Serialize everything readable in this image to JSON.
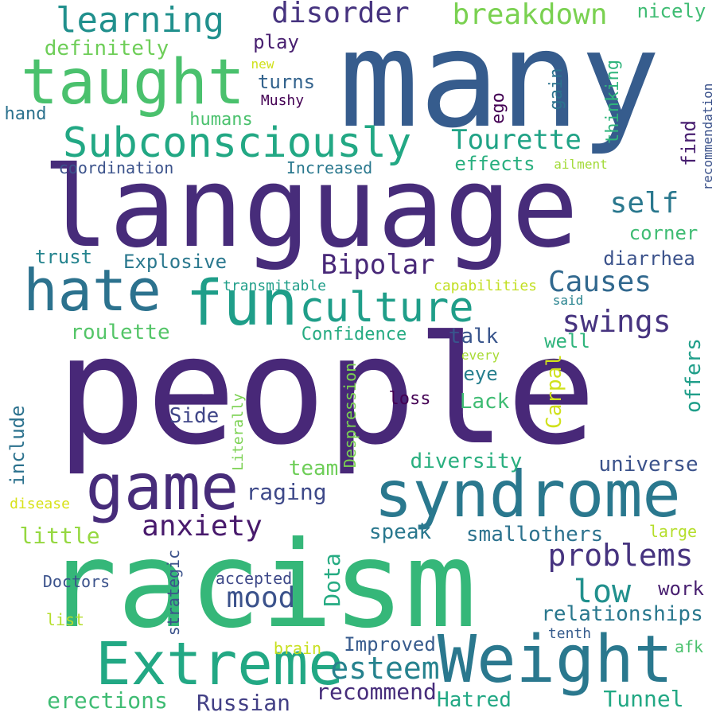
{
  "words": [
    {
      "text": "people",
      "color": "#482878"
    },
    {
      "text": "many",
      "color": "#365c8d"
    },
    {
      "text": "language",
      "color": "#472c7a"
    },
    {
      "text": "racism",
      "color": "#35b779"
    },
    {
      "text": "syndrome",
      "color": "#2a788e"
    },
    {
      "text": "Weight",
      "color": "#2a788e"
    },
    {
      "text": "Extreme",
      "color": "#22a884"
    },
    {
      "text": "game",
      "color": "#472c7a"
    },
    {
      "text": "taught",
      "color": "#4ac16d"
    },
    {
      "text": "fun",
      "color": "#1f9e89"
    },
    {
      "text": "hate",
      "color": "#2c728e"
    },
    {
      "text": "culture",
      "color": "#1f9e89"
    },
    {
      "text": "Subconsciously",
      "color": "#22a884"
    },
    {
      "text": "learning",
      "color": "#21908d"
    },
    {
      "text": "disorder",
      "color": "#46337f"
    },
    {
      "text": "breakdown",
      "color": "#7ad151"
    },
    {
      "text": "nicely",
      "color": "#3fbc73"
    },
    {
      "text": "definitely",
      "color": "#6ece58"
    },
    {
      "text": "play",
      "color": "#481f70"
    },
    {
      "text": "new",
      "color": "#d0e11c"
    },
    {
      "text": "turns",
      "color": "#33638d"
    },
    {
      "text": "Mushy",
      "color": "#440154"
    },
    {
      "text": "ego",
      "color": "#440154"
    },
    {
      "text": "gain",
      "color": "#2c728e"
    },
    {
      "text": "thinking",
      "color": "#2fb47c"
    },
    {
      "text": "recommendation",
      "color": "#3b528b"
    },
    {
      "text": "hand",
      "color": "#2c728e"
    },
    {
      "text": "humans",
      "color": "#4ac16d"
    },
    {
      "text": "Tourette",
      "color": "#20a386"
    },
    {
      "text": "find",
      "color": "#481f70"
    },
    {
      "text": "coordination",
      "color": "#3b528b"
    },
    {
      "text": "Increased",
      "color": "#2a788e"
    },
    {
      "text": "effects",
      "color": "#29af7f"
    },
    {
      "text": "ailment",
      "color": "#a2da37"
    },
    {
      "text": "self",
      "color": "#2a788e"
    },
    {
      "text": "corner",
      "color": "#3fbc73"
    },
    {
      "text": "trust",
      "color": "#25848e"
    },
    {
      "text": "Explosive",
      "color": "#2a788e"
    },
    {
      "text": "Bipolar",
      "color": "#482878"
    },
    {
      "text": "diarrhea",
      "color": "#3b528b"
    },
    {
      "text": "Causes",
      "color": "#31688e"
    },
    {
      "text": "transmitable",
      "color": "#1f9e89"
    },
    {
      "text": "capabilities",
      "color": "#c2df23"
    },
    {
      "text": "said",
      "color": "#26828e"
    },
    {
      "text": "swings",
      "color": "#46337f"
    },
    {
      "text": "roulette",
      "color": "#54c568"
    },
    {
      "text": "Confidence",
      "color": "#25ab82"
    },
    {
      "text": "talk",
      "color": "#39558c"
    },
    {
      "text": "well",
      "color": "#2fb47c"
    },
    {
      "text": "every",
      "color": "#a8db34"
    },
    {
      "text": "offers",
      "color": "#1f9e89"
    },
    {
      "text": "eye",
      "color": "#277f8e"
    },
    {
      "text": "Carpal",
      "color": "#d0e11c"
    },
    {
      "text": "Despression",
      "color": "#7ad151"
    },
    {
      "text": "loss",
      "color": "#440154"
    },
    {
      "text": "Lack",
      "color": "#3fbc73"
    },
    {
      "text": "include",
      "color": "#2c728e"
    },
    {
      "text": "Side",
      "color": "#404688"
    },
    {
      "text": "Literally",
      "color": "#7ad151"
    },
    {
      "text": "diversity",
      "color": "#29af7f"
    },
    {
      "text": "team",
      "color": "#6ece58"
    },
    {
      "text": "universe",
      "color": "#3b528b"
    },
    {
      "text": "raging",
      "color": "#3e4989"
    },
    {
      "text": "disease",
      "color": "#d8e219"
    },
    {
      "text": "anxiety",
      "color": "#481a6c"
    },
    {
      "text": "speak",
      "color": "#2a788e"
    },
    {
      "text": "smallothers",
      "color": "#2c728e"
    },
    {
      "text": "little",
      "color": "#95d840"
    },
    {
      "text": "large",
      "color": "#b5de2b"
    },
    {
      "text": "problems",
      "color": "#46337f"
    },
    {
      "text": "mood",
      "color": "#3b528b"
    },
    {
      "text": "Dota",
      "color": "#25ab82"
    },
    {
      "text": "low",
      "color": "#21908d"
    },
    {
      "text": "strategic",
      "color": "#3b528b"
    },
    {
      "text": "Doctors",
      "color": "#3b528b"
    },
    {
      "text": "accepted",
      "color": "#3e4989"
    },
    {
      "text": "work",
      "color": "#481f70"
    },
    {
      "text": "relationships",
      "color": "#2a788e"
    },
    {
      "text": "list",
      "color": "#b5de2b"
    },
    {
      "text": "brain",
      "color": "#c8e020"
    },
    {
      "text": "Improved",
      "color": "#375b8d"
    },
    {
      "text": "tenth",
      "color": "#365c8d"
    },
    {
      "text": "afk",
      "color": "#4ac16d"
    },
    {
      "text": "esteem",
      "color": "#26828e"
    },
    {
      "text": "recommend",
      "color": "#472d7b"
    },
    {
      "text": "Hatred",
      "color": "#22a884"
    },
    {
      "text": "Tunnel",
      "color": "#22a884"
    },
    {
      "text": "erections",
      "color": "#3fbc73"
    },
    {
      "text": "Russian",
      "color": "#423f85"
    }
  ]
}
